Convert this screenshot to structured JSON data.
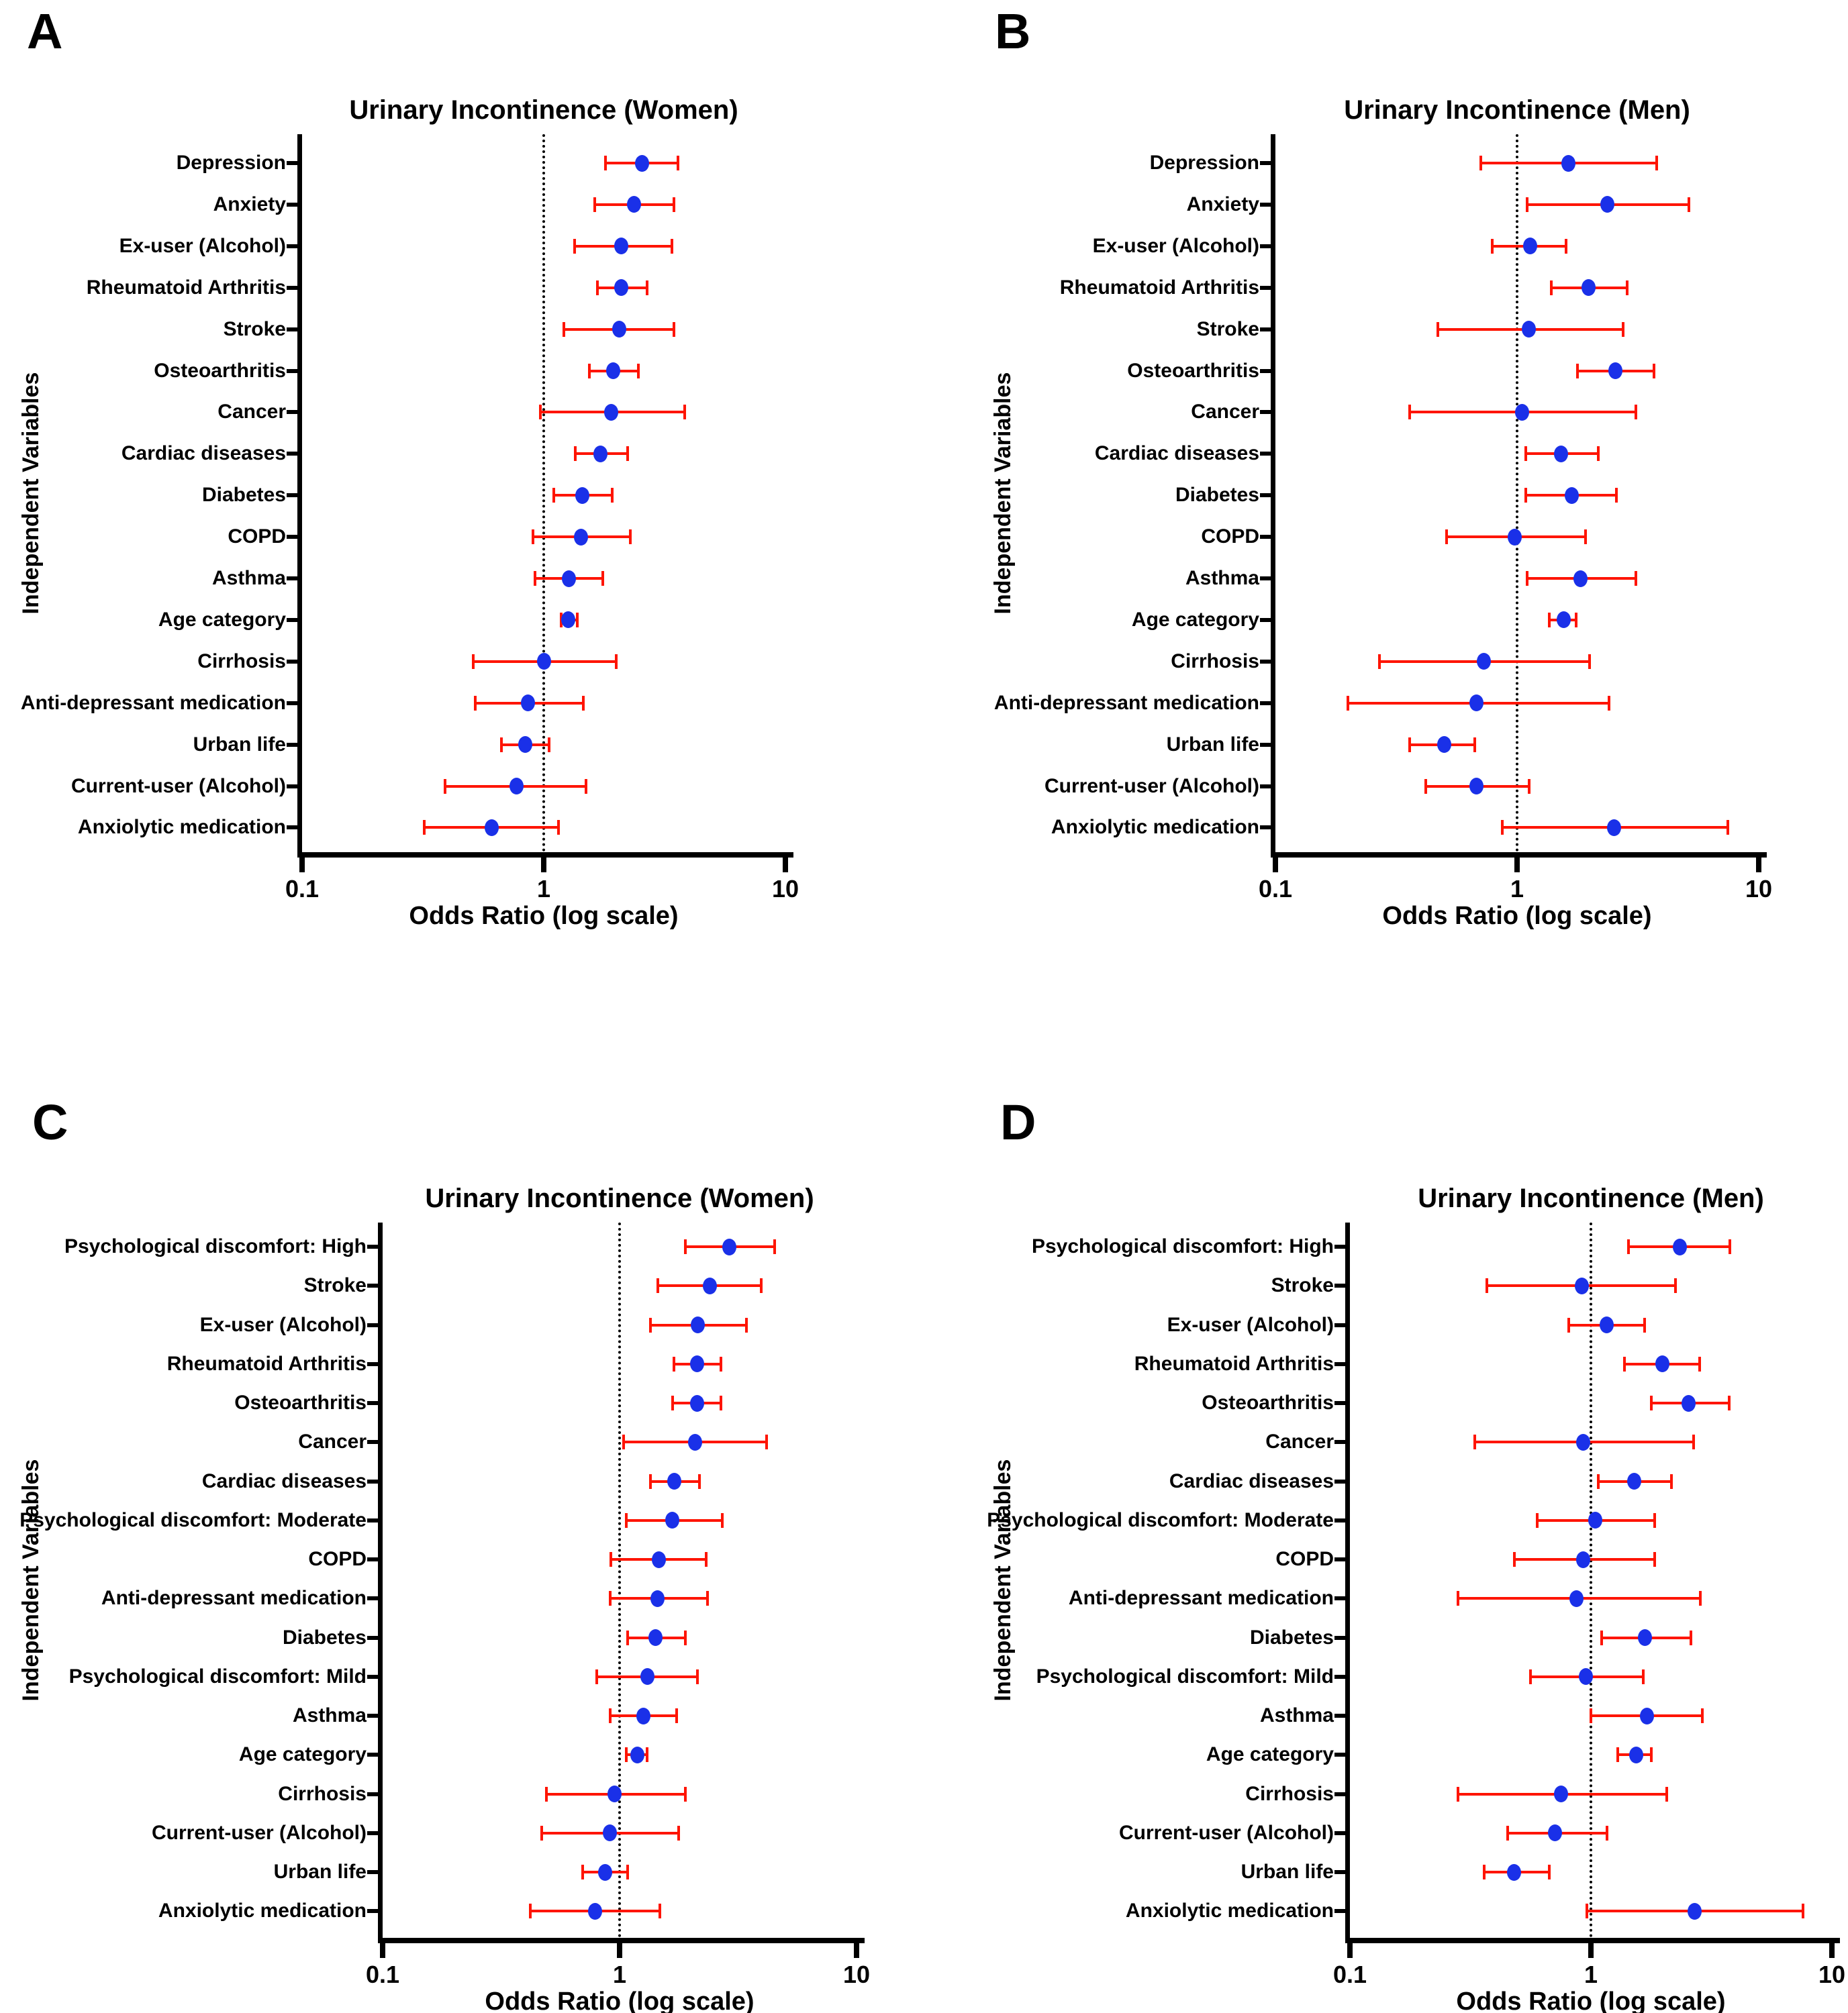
{
  "figure": {
    "xlabel": "Odds Ratio (log scale)",
    "ylabel": "Independent Variables",
    "x_tick_labels": [
      "0.1",
      "1",
      "10"
    ],
    "colors": {
      "point": "#1a30e8",
      "error": "#fe1400",
      "axis": "#000000",
      "background": "#ffffff"
    }
  },
  "chart_data": [
    {
      "type": "scatter",
      "subtype": "forest-plot",
      "letter": "A",
      "title": "Urinary Incontinence (Women)",
      "xlabel": "Odds Ratio (log scale)",
      "ylabel": "Independent Variables",
      "x_scale": "log",
      "x_ticks": [
        0.1,
        1,
        10
      ],
      "xlim": [
        0.1,
        10
      ],
      "reference_line": 1,
      "rows": [
        {
          "label": "Depression",
          "or": 2.55,
          "ci_low": 1.8,
          "ci_high": 3.6
        },
        {
          "label": "Anxiety",
          "or": 2.36,
          "ci_low": 1.63,
          "ci_high": 3.45
        },
        {
          "label": "Ex-user (Alcohol)",
          "or": 2.1,
          "ci_low": 1.34,
          "ci_high": 3.4
        },
        {
          "label": "Rheumatoid Arthritis",
          "or": 2.1,
          "ci_low": 1.67,
          "ci_high": 2.67
        },
        {
          "label": "Stroke",
          "or": 2.05,
          "ci_low": 1.21,
          "ci_high": 3.45
        },
        {
          "label": "Osteoarthritis",
          "or": 1.94,
          "ci_low": 1.54,
          "ci_high": 2.47
        },
        {
          "label": "Cancer",
          "or": 1.9,
          "ci_low": 0.97,
          "ci_high": 3.84
        },
        {
          "label": "Cardiac diseases",
          "or": 1.72,
          "ci_low": 1.35,
          "ci_high": 2.22
        },
        {
          "label": "Diabetes",
          "or": 1.44,
          "ci_low": 1.1,
          "ci_high": 1.92
        },
        {
          "label": "COPD",
          "or": 1.43,
          "ci_low": 0.9,
          "ci_high": 2.28
        },
        {
          "label": "Asthma",
          "or": 1.27,
          "ci_low": 0.92,
          "ci_high": 1.76
        },
        {
          "label": "Age category",
          "or": 1.26,
          "ci_low": 1.18,
          "ci_high": 1.38
        },
        {
          "label": "Cirrhosis",
          "or": 1.0,
          "ci_low": 0.51,
          "ci_high": 1.99
        },
        {
          "label": "Anti-depressant medication",
          "or": 0.86,
          "ci_low": 0.52,
          "ci_high": 1.46
        },
        {
          "label": "Urban life",
          "or": 0.84,
          "ci_low": 0.67,
          "ci_high": 1.05
        },
        {
          "label": "Current-user (Alcohol)",
          "or": 0.77,
          "ci_low": 0.39,
          "ci_high": 1.5
        },
        {
          "label": "Anxiolytic medication",
          "or": 0.61,
          "ci_low": 0.32,
          "ci_high": 1.15
        }
      ]
    },
    {
      "type": "scatter",
      "subtype": "forest-plot",
      "letter": "B",
      "title": "Urinary Incontinence (Men)",
      "xlabel": "Odds Ratio (log scale)",
      "ylabel": "Independent Variables",
      "x_scale": "log",
      "x_ticks": [
        0.1,
        1,
        10
      ],
      "xlim": [
        0.1,
        10
      ],
      "reference_line": 1,
      "rows": [
        {
          "label": "Depression",
          "or": 1.63,
          "ci_low": 0.71,
          "ci_high": 3.78
        },
        {
          "label": "Anxiety",
          "or": 2.36,
          "ci_low": 1.1,
          "ci_high": 5.14
        },
        {
          "label": "Ex-user (Alcohol)",
          "or": 1.13,
          "ci_low": 0.79,
          "ci_high": 1.6
        },
        {
          "label": "Rheumatoid Arthritis",
          "or": 1.98,
          "ci_low": 1.39,
          "ci_high": 2.85
        },
        {
          "label": "Stroke",
          "or": 1.12,
          "ci_low": 0.47,
          "ci_high": 2.74
        },
        {
          "label": "Osteoarthritis",
          "or": 2.55,
          "ci_low": 1.78,
          "ci_high": 3.69
        },
        {
          "label": "Cancer",
          "or": 1.05,
          "ci_low": 0.36,
          "ci_high": 3.1
        },
        {
          "label": "Cardiac diseases",
          "or": 1.52,
          "ci_low": 1.09,
          "ci_high": 2.17
        },
        {
          "label": "Diabetes",
          "or": 1.68,
          "ci_low": 1.09,
          "ci_high": 2.58
        },
        {
          "label": "COPD",
          "or": 0.98,
          "ci_low": 0.51,
          "ci_high": 1.92
        },
        {
          "label": "Asthma",
          "or": 1.83,
          "ci_low": 1.1,
          "ci_high": 3.1
        },
        {
          "label": "Age category",
          "or": 1.56,
          "ci_low": 1.36,
          "ci_high": 1.76
        },
        {
          "label": "Cirrhosis",
          "or": 0.73,
          "ci_low": 0.27,
          "ci_high": 2.0
        },
        {
          "label": "Anti-depressant medication",
          "or": 0.68,
          "ci_low": 0.2,
          "ci_high": 2.4
        },
        {
          "label": "Urban life",
          "or": 0.5,
          "ci_low": 0.36,
          "ci_high": 0.67
        },
        {
          "label": "Current-user (Alcohol)",
          "or": 0.68,
          "ci_low": 0.42,
          "ci_high": 1.12
        },
        {
          "label": "Anxiolytic medication",
          "or": 2.52,
          "ci_low": 0.87,
          "ci_high": 7.45
        }
      ]
    },
    {
      "type": "scatter",
      "subtype": "forest-plot",
      "letter": "C",
      "title": "Urinary Incontinence (Women)",
      "xlabel": "Odds Ratio (log scale)",
      "ylabel": "Independent Variables",
      "x_scale": "log",
      "x_ticks": [
        0.1,
        1,
        10
      ],
      "xlim": [
        0.1,
        10
      ],
      "reference_line": 1,
      "rows": [
        {
          "label": "Psychological discomfort: High",
          "or": 2.9,
          "ci_low": 1.9,
          "ci_high": 4.5
        },
        {
          "label": "Stroke",
          "or": 2.4,
          "ci_low": 1.45,
          "ci_high": 3.97
        },
        {
          "label": "Ex-user (Alcohol)",
          "or": 2.14,
          "ci_low": 1.35,
          "ci_high": 3.44
        },
        {
          "label": "Rheumatoid Arthritis",
          "or": 2.13,
          "ci_low": 1.7,
          "ci_high": 2.68
        },
        {
          "label": "Osteoarthritis",
          "or": 2.13,
          "ci_low": 1.67,
          "ci_high": 2.68
        },
        {
          "label": "Cancer",
          "or": 2.08,
          "ci_low": 1.04,
          "ci_high": 4.16
        },
        {
          "label": "Cardiac diseases",
          "or": 1.7,
          "ci_low": 1.35,
          "ci_high": 2.17
        },
        {
          "label": "Psychological discomfort: Moderate",
          "or": 1.67,
          "ci_low": 1.07,
          "ci_high": 2.72
        },
        {
          "label": "COPD",
          "or": 1.46,
          "ci_low": 0.92,
          "ci_high": 2.32
        },
        {
          "label": "Anti-depressant medication",
          "or": 1.45,
          "ci_low": 0.91,
          "ci_high": 2.35
        },
        {
          "label": "Diabetes",
          "or": 1.42,
          "ci_low": 1.08,
          "ci_high": 1.9
        },
        {
          "label": "Psychological discomfort: Mild",
          "or": 1.31,
          "ci_low": 0.8,
          "ci_high": 2.13
        },
        {
          "label": "Asthma",
          "or": 1.26,
          "ci_low": 0.91,
          "ci_high": 1.74
        },
        {
          "label": "Age category",
          "or": 1.19,
          "ci_low": 1.07,
          "ci_high": 1.31
        },
        {
          "label": "Cirrhosis",
          "or": 0.95,
          "ci_low": 0.49,
          "ci_high": 1.9
        },
        {
          "label": "Current-user (Alcohol)",
          "or": 0.91,
          "ci_low": 0.47,
          "ci_high": 1.77
        },
        {
          "label": "Urban life",
          "or": 0.87,
          "ci_low": 0.7,
          "ci_high": 1.08
        },
        {
          "label": "Anxiolytic medication",
          "or": 0.79,
          "ci_low": 0.42,
          "ci_high": 1.48
        }
      ]
    },
    {
      "type": "scatter",
      "subtype": "forest-plot",
      "letter": "D",
      "title": "Urinary Incontinence (Men)",
      "xlabel": "Odds Ratio (log scale)",
      "ylabel": "Independent Variables",
      "x_scale": "log",
      "x_ticks": [
        0.1,
        1,
        10
      ],
      "xlim": [
        0.1,
        10
      ],
      "reference_line": 1,
      "rows": [
        {
          "label": "Psychological discomfort: High",
          "or": 2.34,
          "ci_low": 1.43,
          "ci_high": 3.78
        },
        {
          "label": "Stroke",
          "or": 0.92,
          "ci_low": 0.37,
          "ci_high": 2.24
        },
        {
          "label": "Ex-user (Alcohol)",
          "or": 1.16,
          "ci_low": 0.81,
          "ci_high": 1.67
        },
        {
          "label": "Rheumatoid Arthritis",
          "or": 1.98,
          "ci_low": 1.38,
          "ci_high": 2.82
        },
        {
          "label": "Osteoarthritis",
          "or": 2.54,
          "ci_low": 1.78,
          "ci_high": 3.74
        },
        {
          "label": "Cancer",
          "or": 0.93,
          "ci_low": 0.33,
          "ci_high": 2.67
        },
        {
          "label": "Cardiac diseases",
          "or": 1.51,
          "ci_low": 1.07,
          "ci_high": 2.16
        },
        {
          "label": "Psychological discomfort: Moderate",
          "or": 1.04,
          "ci_low": 0.6,
          "ci_high": 1.84
        },
        {
          "label": "COPD",
          "or": 0.93,
          "ci_low": 0.48,
          "ci_high": 1.84
        },
        {
          "label": "Anti-depressant medication",
          "or": 0.87,
          "ci_low": 0.28,
          "ci_high": 2.85
        },
        {
          "label": "Diabetes",
          "or": 1.68,
          "ci_low": 1.11,
          "ci_high": 2.6
        },
        {
          "label": "Psychological discomfort: Mild",
          "or": 0.95,
          "ci_low": 0.56,
          "ci_high": 1.65
        },
        {
          "label": "Asthma",
          "or": 1.71,
          "ci_low": 1.0,
          "ci_high": 2.9
        },
        {
          "label": "Age category",
          "or": 1.54,
          "ci_low": 1.29,
          "ci_high": 1.78
        },
        {
          "label": "Cirrhosis",
          "or": 0.75,
          "ci_low": 0.28,
          "ci_high": 2.07
        },
        {
          "label": "Current-user (Alcohol)",
          "or": 0.71,
          "ci_low": 0.45,
          "ci_high": 1.17
        },
        {
          "label": "Urban life",
          "or": 0.48,
          "ci_low": 0.36,
          "ci_high": 0.67
        },
        {
          "label": "Anxiolytic medication",
          "or": 2.7,
          "ci_low": 0.96,
          "ci_high": 7.6
        }
      ]
    }
  ]
}
